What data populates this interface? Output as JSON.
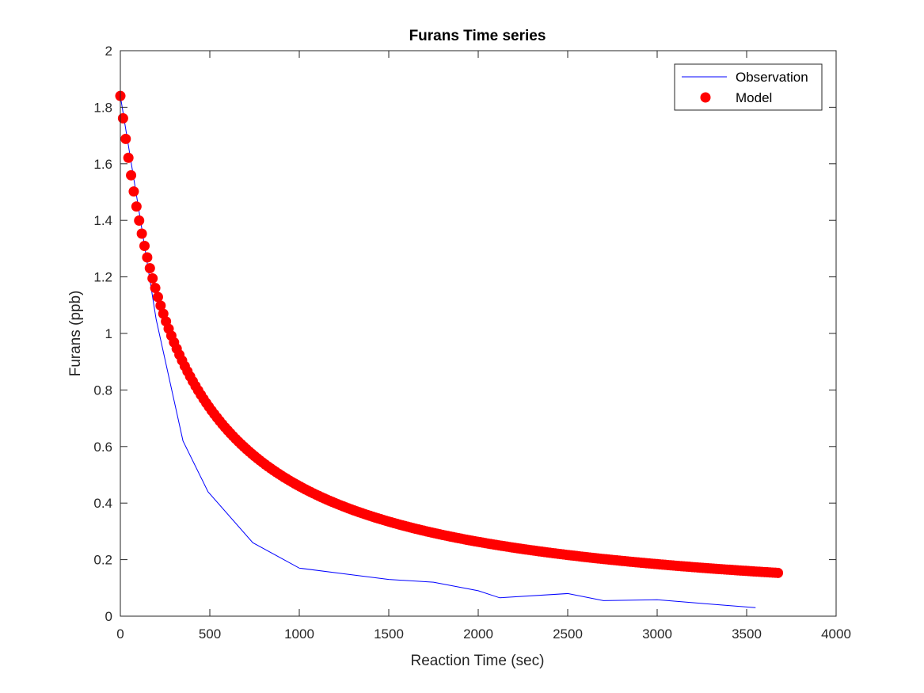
{
  "chart_data": {
    "type": "line+scatter",
    "title": "Furans Time series",
    "xlabel": "Reaction Time (sec)",
    "ylabel": "Furans (ppb)",
    "xlim": [
      0,
      4000
    ],
    "ylim": [
      0,
      2
    ],
    "xticks": [
      0,
      500,
      1000,
      1500,
      2000,
      2500,
      3000,
      3500,
      4000
    ],
    "yticks": [
      0,
      0.2,
      0.4,
      0.6,
      0.8,
      1,
      1.2,
      1.4,
      1.6,
      1.8,
      2
    ],
    "grid": false,
    "legend_position": "top-right",
    "series": [
      {
        "name": "Observation",
        "style": "line",
        "color": "#0000ff",
        "x": [
          0,
          100,
          200,
          350,
          490,
          740,
          1000,
          1250,
          1500,
          1750,
          2000,
          2120,
          2500,
          2700,
          3000,
          3250,
          3550
        ],
        "y": [
          1.84,
          1.45,
          1.05,
          0.62,
          0.44,
          0.26,
          0.17,
          0.15,
          0.13,
          0.12,
          0.09,
          0.065,
          0.08,
          0.055,
          0.058,
          0.045,
          0.03
        ]
      },
      {
        "name": "Model",
        "style": "markers",
        "color": "#ff0000",
        "model": {
          "A": 1.84,
          "k": 0.003,
          "B": 0.0016,
          "t_start": 0,
          "t_end": 3680,
          "step": 15
        }
      }
    ]
  }
}
